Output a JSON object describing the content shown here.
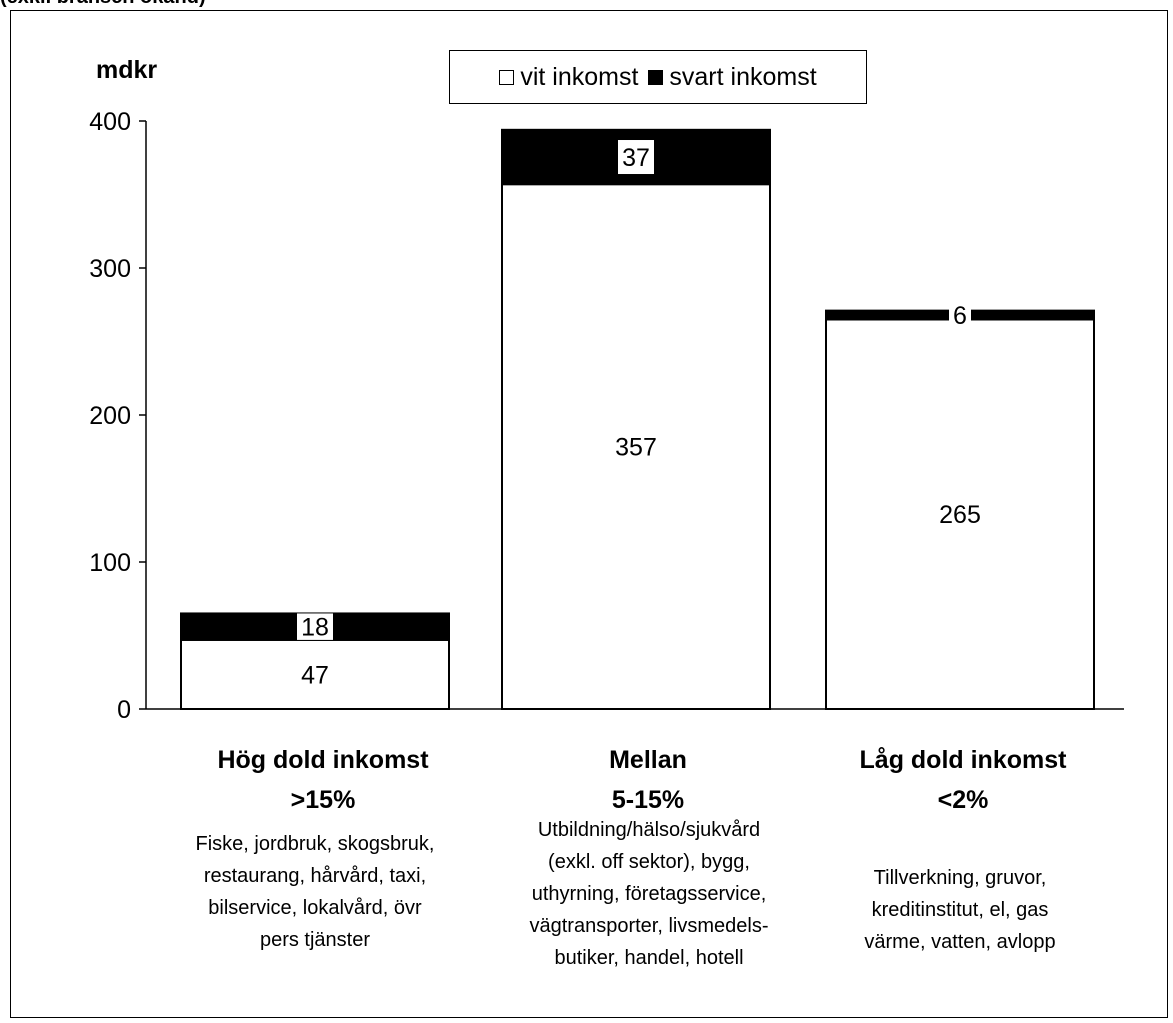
{
  "top_caption": "(exkl. bransch okänd)",
  "chart_data": {
    "type": "bar",
    "stacked": true,
    "unit_label": "mdkr",
    "ylim": [
      0,
      400
    ],
    "yticks": [
      0,
      100,
      200,
      300,
      400
    ],
    "categories": [
      {
        "title": "Hög dold inkomst",
        "subtitle": ">15%",
        "description": [
          "Fiske, jordbruk, skogsbruk,",
          "restaurang, hårvård, taxi,",
          "bilservice, lokalvård, övr",
          "pers tjänster"
        ]
      },
      {
        "title": "Mellan",
        "subtitle": "5-15%",
        "description": [
          "Utbildning/hälso/sjukvård",
          "(exkl. off sektor), bygg,",
          "uthyrning, företagsservice,",
          "vägtransporter, livsmedels-",
          "butiker, handel, hotell"
        ]
      },
      {
        "title": "Låg dold inkomst",
        "subtitle": "<2%",
        "description": [
          "Tillverkning, gruvor,",
          "kreditinstitut, el, gas",
          "värme, vatten, avlopp"
        ]
      }
    ],
    "series": [
      {
        "name": "vit inkomst",
        "color": "#ffffff",
        "values": [
          47,
          357,
          265
        ]
      },
      {
        "name": "svart inkomst",
        "color": "#000000",
        "values": [
          18,
          37,
          6
        ]
      }
    ],
    "legend_position": "top-center",
    "grid": false
  }
}
